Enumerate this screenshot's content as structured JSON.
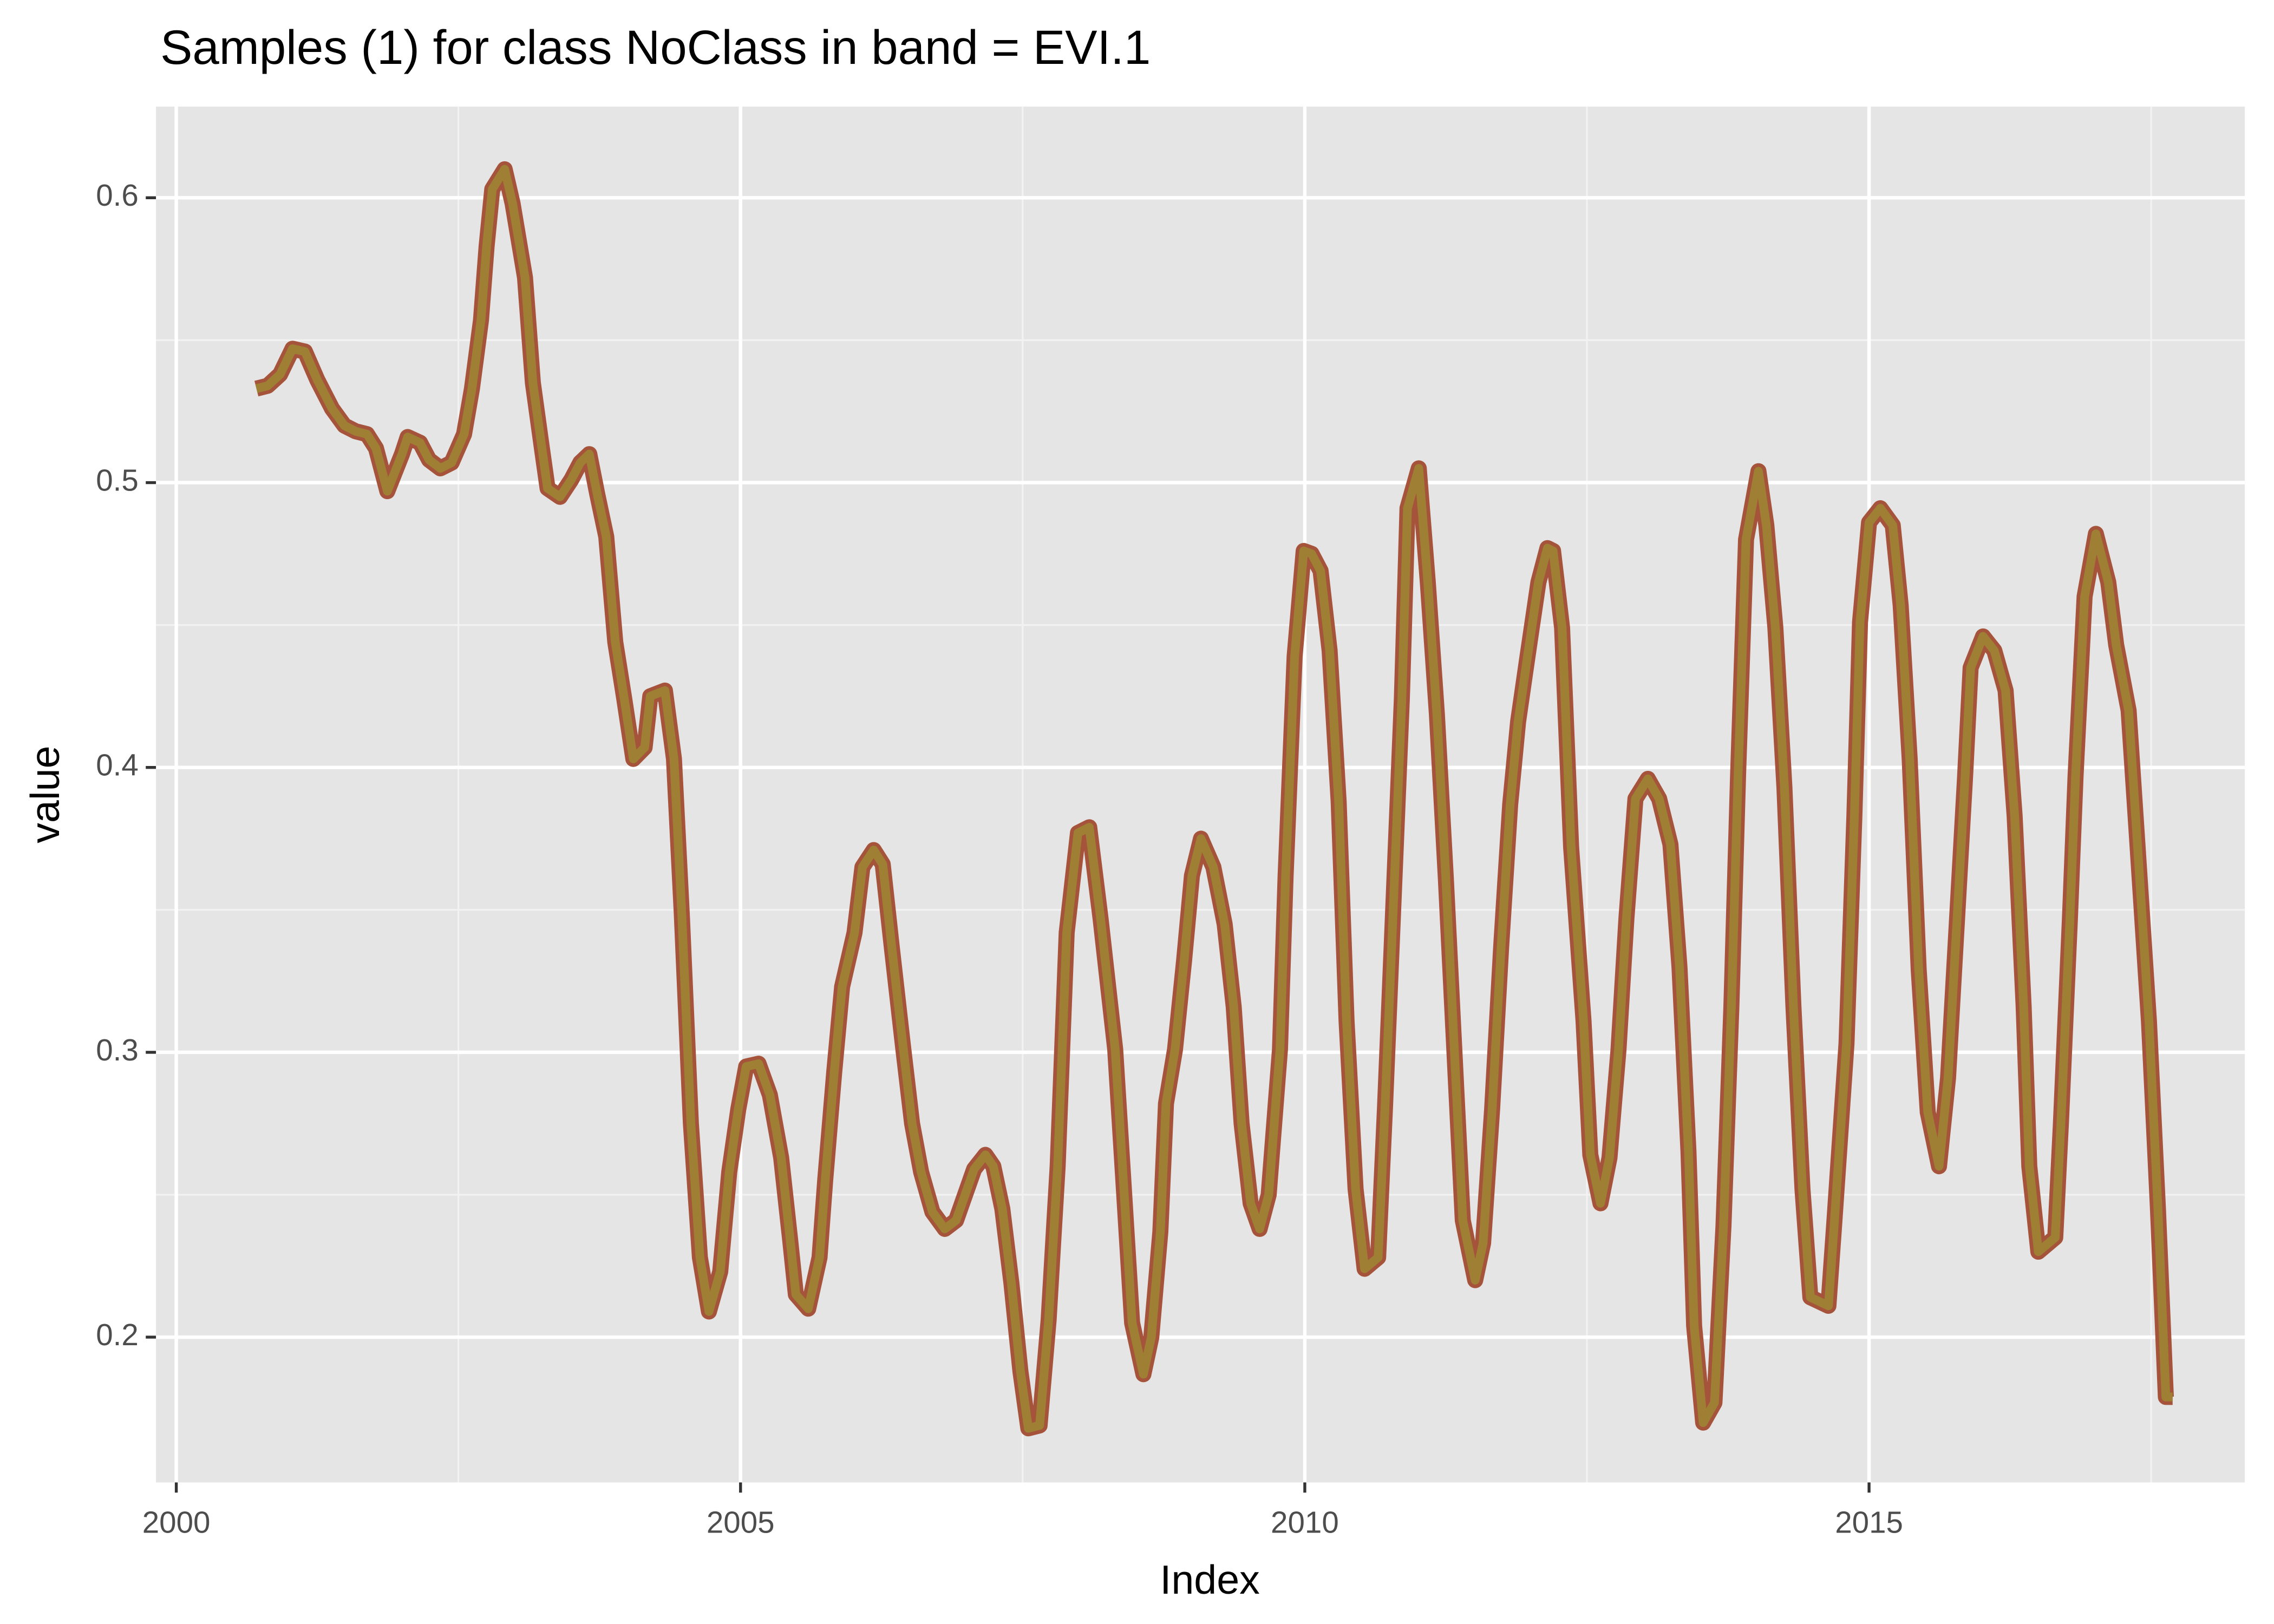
{
  "chart_data": {
    "type": "line",
    "title": "Samples (1) for class NoClass in band = EVI.1",
    "x_label": "Index",
    "y_label": "value",
    "x": [
      2000.71,
      2000.81,
      2000.92,
      2001.03,
      2001.14,
      2001.25,
      2001.38,
      2001.49,
      2001.59,
      2001.69,
      2001.77,
      2001.87,
      2002.0,
      2002.05,
      2002.16,
      2002.24,
      2002.34,
      2002.44,
      2002.55,
      2002.62,
      2002.7,
      2002.75,
      2002.8,
      2002.91,
      2002.98,
      2003.09,
      2003.16,
      2003.24,
      2003.29,
      2003.4,
      2003.5,
      2003.58,
      2003.66,
      2003.73,
      2003.81,
      2003.89,
      2003.97,
      2004.05,
      2004.15,
      2004.2,
      2004.33,
      2004.41,
      2004.48,
      2004.56,
      2004.64,
      2004.72,
      2004.82,
      2004.9,
      2004.98,
      2005.05,
      2005.16,
      2005.26,
      2005.36,
      2005.44,
      2005.49,
      2005.6,
      2005.7,
      2005.75,
      2005.83,
      2005.9,
      2006.01,
      2006.08,
      2006.18,
      2006.26,
      2006.34,
      2006.44,
      2006.52,
      2006.6,
      2006.7,
      2006.81,
      2006.91,
      2006.99,
      2007.07,
      2007.17,
      2007.24,
      2007.32,
      2007.4,
      2007.48,
      2007.55,
      2007.65,
      2007.73,
      2007.81,
      2007.89,
      2007.99,
      2008.09,
      2008.19,
      2008.32,
      2008.4,
      2008.47,
      2008.57,
      2008.64,
      2008.72,
      2008.77,
      2008.85,
      2008.93,
      2009.0,
      2009.08,
      2009.19,
      2009.29,
      2009.37,
      2009.44,
      2009.52,
      2009.6,
      2009.68,
      2009.78,
      2009.83,
      2009.91,
      2009.99,
      2010.06,
      2010.14,
      2010.22,
      2010.3,
      2010.37,
      2010.45,
      2010.53,
      2010.65,
      2010.71,
      2010.78,
      2010.86,
      2010.91,
      2011.01,
      2011.09,
      2011.17,
      2011.25,
      2011.32,
      2011.4,
      2011.51,
      2011.58,
      2011.66,
      2011.74,
      2011.82,
      2011.89,
      2011.97,
      2012.07,
      2012.15,
      2012.2,
      2012.28,
      2012.36,
      2012.47,
      2012.53,
      2012.62,
      2012.7,
      2012.78,
      2012.85,
      2012.93,
      2013.04,
      2013.14,
      2013.24,
      2013.32,
      2013.4,
      2013.45,
      2013.53,
      2013.63,
      2013.71,
      2013.78,
      2013.84,
      2013.91,
      2014.02,
      2014.09,
      2014.17,
      2014.25,
      2014.33,
      2014.41,
      2014.48,
      2014.64,
      2014.69,
      2014.8,
      2014.87,
      2014.92,
      2015.0,
      2015.1,
      2015.21,
      2015.28,
      2015.36,
      2015.44,
      2015.52,
      2015.62,
      2015.7,
      2015.78,
      2015.85,
      2015.9,
      2016.01,
      2016.11,
      2016.21,
      2016.29,
      2016.37,
      2016.42,
      2016.5,
      2016.65,
      2016.7,
      2016.78,
      2016.83,
      2016.91,
      2017.01,
      2017.12,
      2017.19,
      2017.3,
      2017.37,
      2017.48,
      2017.56,
      2017.63,
      2017.69
    ],
    "values": [
      0.533,
      0.534,
      0.538,
      0.547,
      0.546,
      0.536,
      0.526,
      0.52,
      0.518,
      0.517,
      0.512,
      0.497,
      0.51,
      0.516,
      0.514,
      0.508,
      0.505,
      0.507,
      0.517,
      0.533,
      0.557,
      0.583,
      0.603,
      0.61,
      0.598,
      0.572,
      0.535,
      0.512,
      0.498,
      0.495,
      0.501,
      0.507,
      0.51,
      0.496,
      0.481,
      0.444,
      0.424,
      0.403,
      0.407,
      0.425,
      0.427,
      0.403,
      0.348,
      0.275,
      0.228,
      0.209,
      0.223,
      0.258,
      0.28,
      0.295,
      0.296,
      0.285,
      0.263,
      0.234,
      0.215,
      0.21,
      0.228,
      0.255,
      0.293,
      0.323,
      0.342,
      0.365,
      0.371,
      0.366,
      0.337,
      0.302,
      0.275,
      0.258,
      0.244,
      0.238,
      0.241,
      0.25,
      0.259,
      0.264,
      0.26,
      0.245,
      0.219,
      0.188,
      0.168,
      0.169,
      0.206,
      0.26,
      0.342,
      0.377,
      0.379,
      0.347,
      0.301,
      0.25,
      0.205,
      0.187,
      0.2,
      0.237,
      0.282,
      0.301,
      0.332,
      0.362,
      0.375,
      0.365,
      0.345,
      0.316,
      0.275,
      0.247,
      0.238,
      0.25,
      0.301,
      0.362,
      0.439,
      0.476,
      0.475,
      0.469,
      0.441,
      0.388,
      0.311,
      0.252,
      0.224,
      0.228,
      0.28,
      0.347,
      0.424,
      0.491,
      0.505,
      0.465,
      0.419,
      0.361,
      0.305,
      0.241,
      0.22,
      0.233,
      0.28,
      0.337,
      0.387,
      0.416,
      0.438,
      0.465,
      0.477,
      0.476,
      0.449,
      0.372,
      0.311,
      0.264,
      0.247,
      0.263,
      0.301,
      0.347,
      0.389,
      0.396,
      0.389,
      0.373,
      0.33,
      0.265,
      0.204,
      0.17,
      0.177,
      0.239,
      0.316,
      0.398,
      0.48,
      0.504,
      0.485,
      0.449,
      0.393,
      0.316,
      0.252,
      0.214,
      0.211,
      0.239,
      0.303,
      0.383,
      0.451,
      0.486,
      0.491,
      0.485,
      0.457,
      0.403,
      0.329,
      0.279,
      0.26,
      0.291,
      0.347,
      0.396,
      0.435,
      0.446,
      0.441,
      0.427,
      0.383,
      0.316,
      0.26,
      0.23,
      0.235,
      0.275,
      0.347,
      0.397,
      0.46,
      0.482,
      0.465,
      0.443,
      0.42,
      0.378,
      0.311,
      0.245,
      0.179,
      0.179
    ],
    "color": "#9e7f33",
    "outline_color": "#a5533a",
    "xlim": [
      1999.82,
      2018.33
    ],
    "ylim": [
      0.149,
      0.632
    ],
    "xticks": [
      2000,
      2005,
      2010,
      2015
    ],
    "yticks": [
      0.2,
      0.3,
      0.4,
      0.5,
      0.6
    ],
    "x_minor_grid": [
      2002.5,
      2007.5,
      2012.5,
      2017.5
    ],
    "y_minor_grid": [
      0.25,
      0.35,
      0.45,
      0.55
    ],
    "grid": true
  }
}
